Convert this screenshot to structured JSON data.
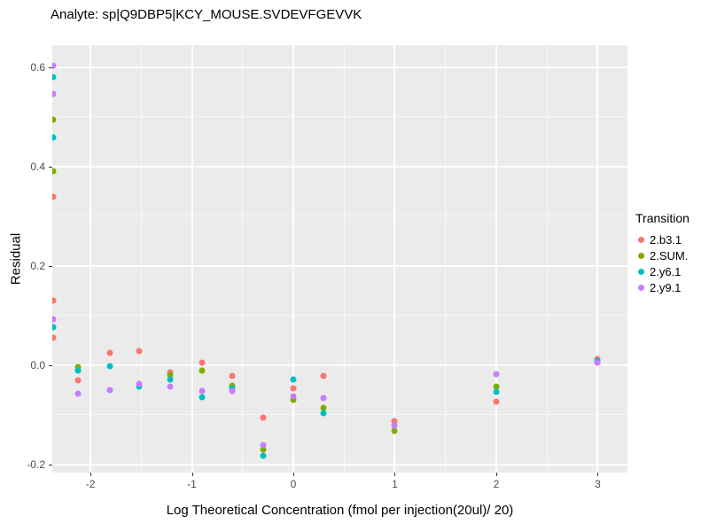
{
  "title": "Analyte: sp|Q9DBP5|KCY_MOUSE.SVDEVFGEVVK",
  "chart_data": {
    "type": "scatter",
    "title": "Analyte: sp|Q9DBP5|KCY_MOUSE.SVDEVFGEVVK",
    "xlabel": "Log Theoretical Concentration (fmol per injection(20ul)/ 20)",
    "ylabel": "Residual",
    "xlim": [
      -2.376,
      3.293
    ],
    "ylim": [
      -0.216,
      0.644
    ],
    "x_ticks": [
      -2,
      -1,
      0,
      1,
      2,
      3
    ],
    "x_tick_labels": [
      "-2",
      "-1",
      "0",
      "1",
      "2",
      "3"
    ],
    "y_ticks": [
      0.6,
      0.4,
      0.2,
      0.0,
      -0.2
    ],
    "y_tick_labels": [
      "0.6",
      "0.4",
      "0.2",
      "0.0",
      "-0.2"
    ],
    "x_minor_ticks": [
      -1.5,
      -0.5,
      0.5,
      1.5,
      2.5
    ],
    "y_minor_ticks": [
      0.5,
      0.3,
      0.1,
      -0.1
    ],
    "grid": true,
    "panel_background": "#EBEBEB",
    "legend_position": "right",
    "legend_title": "Transition",
    "series": [
      {
        "name": "2.b3.1",
        "color": "#F8766D",
        "points": [
          [
            -2.37,
            0.339
          ],
          [
            -2.37,
            0.131
          ],
          [
            -2.37,
            0.056
          ],
          [
            -2.12,
            -0.03
          ],
          [
            -1.81,
            0.025
          ],
          [
            -1.52,
            0.028
          ],
          [
            -1.21,
            -0.014
          ],
          [
            -0.9,
            0.006
          ],
          [
            -0.6,
            -0.021
          ],
          [
            -0.3,
            -0.105
          ],
          [
            0.0,
            -0.046
          ],
          [
            0.3,
            -0.021
          ],
          [
            1.0,
            -0.112
          ],
          [
            2.0,
            -0.074
          ],
          [
            3.0,
            0.012
          ]
        ]
      },
      {
        "name": "2.SUM.",
        "color": "#7CAE00",
        "points": [
          [
            -2.37,
            0.494
          ],
          [
            -2.37,
            0.391
          ],
          [
            -2.12,
            -0.004
          ],
          [
            -1.21,
            -0.02
          ],
          [
            -0.9,
            -0.01
          ],
          [
            -0.6,
            -0.041
          ],
          [
            -0.3,
            -0.169
          ],
          [
            0.0,
            -0.07
          ],
          [
            0.3,
            -0.085
          ],
          [
            1.0,
            -0.132
          ],
          [
            2.0,
            -0.043
          ]
        ]
      },
      {
        "name": "2.y6.1",
        "color": "#00BFC4",
        "points": [
          [
            -2.37,
            0.579
          ],
          [
            -2.37,
            0.458
          ],
          [
            -2.37,
            0.077
          ],
          [
            -2.12,
            -0.011
          ],
          [
            -1.81,
            -0.002
          ],
          [
            -1.52,
            -0.043
          ],
          [
            -1.21,
            -0.028
          ],
          [
            -0.9,
            -0.064
          ],
          [
            -0.6,
            -0.047
          ],
          [
            -0.3,
            -0.182
          ],
          [
            0.0,
            -0.028
          ],
          [
            0.3,
            -0.096
          ],
          [
            2.0,
            -0.053
          ],
          [
            3.0,
            0.008
          ]
        ]
      },
      {
        "name": "2.y9.1",
        "color": "#C77CFF",
        "points": [
          [
            -2.37,
            0.603
          ],
          [
            -2.37,
            0.545
          ],
          [
            -2.37,
            0.092
          ],
          [
            -2.12,
            -0.058
          ],
          [
            -1.81,
            -0.05
          ],
          [
            -1.52,
            -0.037
          ],
          [
            -1.21,
            -0.043
          ],
          [
            -0.9,
            -0.052
          ],
          [
            -0.6,
            -0.052
          ],
          [
            -0.3,
            -0.16
          ],
          [
            0.0,
            -0.062
          ],
          [
            0.3,
            -0.066
          ],
          [
            1.0,
            -0.121
          ],
          [
            2.0,
            -0.018
          ],
          [
            3.0,
            0.005
          ]
        ]
      }
    ]
  }
}
